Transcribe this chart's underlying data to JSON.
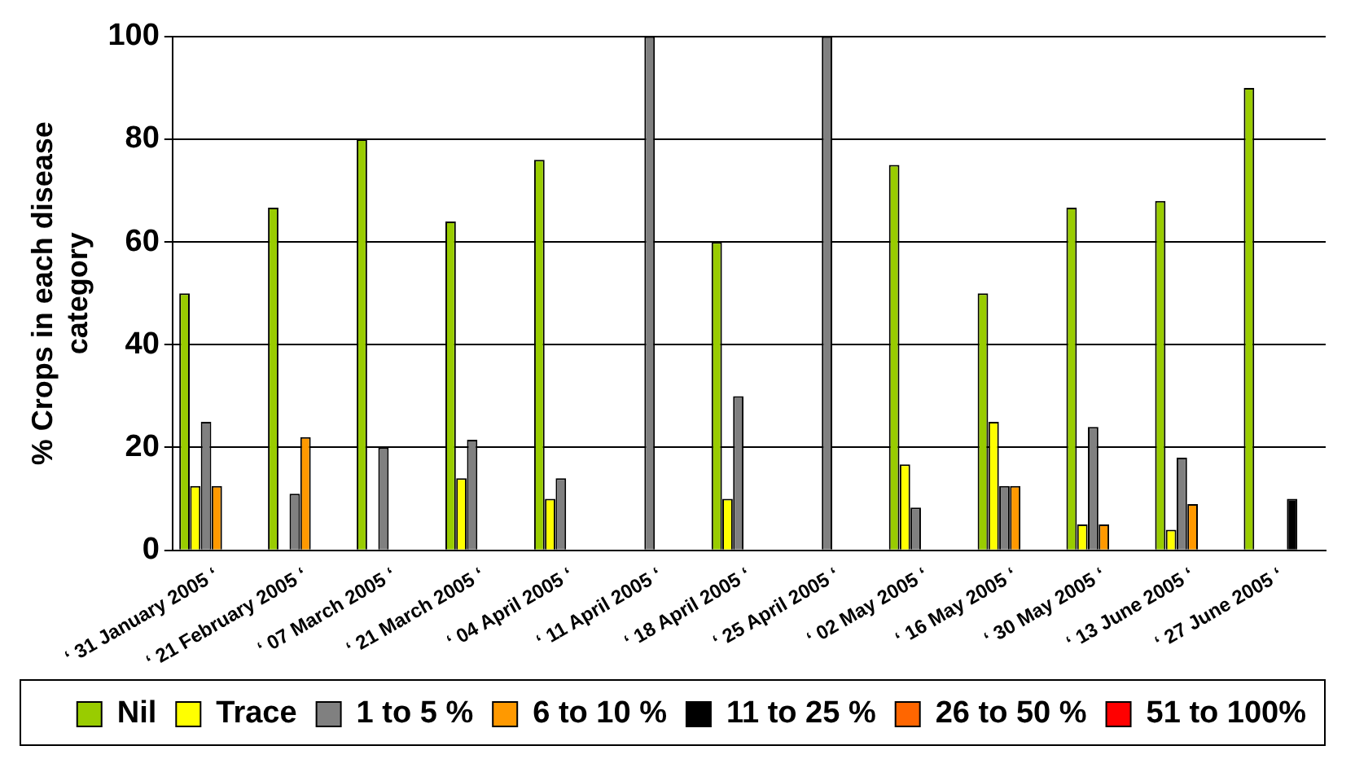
{
  "chart_data": {
    "type": "bar",
    "ylabel": "% Crops in each disease category",
    "categories": [
      "‘ 31 January 2005 ‘",
      "‘ 21 February 2005 ‘",
      "‘ 07 March 2005 ‘",
      "‘ 21 March 2005 ‘",
      "‘ 04 April 2005 ‘",
      "‘ 11 April 2005 ‘",
      "‘ 18 April 2005 ‘",
      "‘ 25 April 2005 ‘",
      "‘ 02 May 2005 ‘",
      "‘ 16 May 2005 ‘",
      "‘ 30 May 2005 ‘",
      "‘ 13 June 2005 ‘",
      "‘ 27 June 2005 ‘"
    ],
    "series": [
      {
        "name": "Nil",
        "color": "#99cc00",
        "values": [
          50,
          66.7,
          80,
          64,
          76,
          null,
          60,
          null,
          75,
          50,
          66.7,
          68,
          90
        ]
      },
      {
        "name": "Trace",
        "color": "#ffff00",
        "values": [
          12.5,
          null,
          null,
          14,
          10,
          null,
          10,
          null,
          16.7,
          25,
          5,
          4,
          null
        ]
      },
      {
        "name": "1 to 5 %",
        "color": "#808080",
        "values": [
          25,
          11,
          20,
          21.5,
          14,
          100,
          30,
          100,
          8.3,
          12.5,
          24,
          18,
          null
        ]
      },
      {
        "name": "6 to 10 %",
        "color": "#ff9900",
        "values": [
          12.5,
          22,
          null,
          null,
          null,
          null,
          null,
          null,
          null,
          12.5,
          5,
          9,
          null
        ]
      },
      {
        "name": "11 to 25 %",
        "color": "#000000",
        "values": [
          null,
          null,
          null,
          null,
          null,
          null,
          null,
          null,
          null,
          null,
          null,
          null,
          10
        ]
      },
      {
        "name": "26 to 50 %",
        "color": "#ff6600",
        "values": [
          null,
          null,
          null,
          null,
          null,
          null,
          null,
          null,
          null,
          null,
          null,
          null,
          null
        ]
      },
      {
        "name": "51 to 100%",
        "color": "#ff0000",
        "values": [
          null,
          null,
          null,
          null,
          null,
          null,
          null,
          null,
          null,
          null,
          null,
          null,
          null
        ]
      }
    ],
    "ylim": [
      0,
      100
    ],
    "yticks": [
      0,
      20,
      40,
      60,
      80,
      100
    ],
    "grid": "y",
    "legend": "bottom"
  }
}
